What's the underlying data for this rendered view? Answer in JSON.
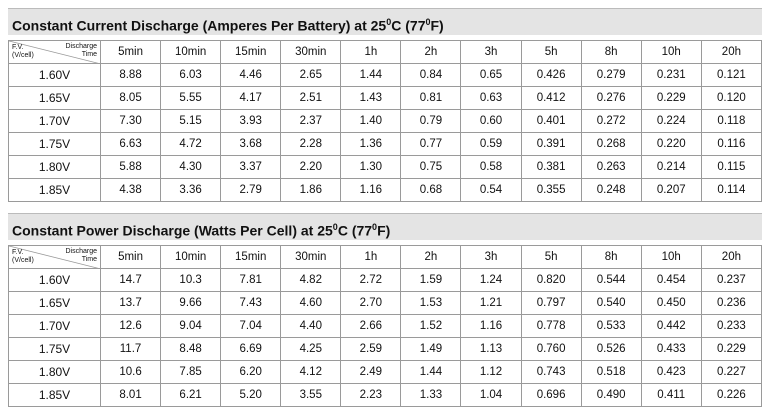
{
  "tables": [
    {
      "title_parts": [
        "Constant Current Discharge (Amperes Per Battery) at 25",
        "0",
        "C (77",
        "0",
        "F)"
      ],
      "corner": {
        "row_label": [
          "F.V.",
          "(V/cell)"
        ],
        "col_label": [
          "Discharge",
          "Time"
        ]
      },
      "columns": [
        "5min",
        "10min",
        "15min",
        "30min",
        "1h",
        "2h",
        "3h",
        "5h",
        "8h",
        "10h",
        "20h"
      ],
      "rows": [
        {
          "fv": "1.60V",
          "values": [
            "8.88",
            "6.03",
            "4.46",
            "2.65",
            "1.44",
            "0.84",
            "0.65",
            "0.426",
            "0.279",
            "0.231",
            "0.121"
          ]
        },
        {
          "fv": "1.65V",
          "values": [
            "8.05",
            "5.55",
            "4.17",
            "2.51",
            "1.43",
            "0.81",
            "0.63",
            "0.412",
            "0.276",
            "0.229",
            "0.120"
          ]
        },
        {
          "fv": "1.70V",
          "values": [
            "7.30",
            "5.15",
            "3.93",
            "2.37",
            "1.40",
            "0.79",
            "0.60",
            "0.401",
            "0.272",
            "0.224",
            "0.118"
          ]
        },
        {
          "fv": "1.75V",
          "values": [
            "6.63",
            "4.72",
            "3.68",
            "2.28",
            "1.36",
            "0.77",
            "0.59",
            "0.391",
            "0.268",
            "0.220",
            "0.116"
          ]
        },
        {
          "fv": "1.80V",
          "values": [
            "5.88",
            "4.30",
            "3.37",
            "2.20",
            "1.30",
            "0.75",
            "0.58",
            "0.381",
            "0.263",
            "0.214",
            "0.115"
          ]
        },
        {
          "fv": "1.85V",
          "values": [
            "4.38",
            "3.36",
            "2.79",
            "1.86",
            "1.16",
            "0.68",
            "0.54",
            "0.355",
            "0.248",
            "0.207",
            "0.114"
          ]
        }
      ]
    },
    {
      "title_parts": [
        "Constant Power Discharge (Watts Per Cell) at 25",
        "0",
        "C (77",
        "0",
        "F)"
      ],
      "corner": {
        "row_label": [
          "F.V.",
          "(V/cell)"
        ],
        "col_label": [
          "Discharge",
          "Time"
        ]
      },
      "columns": [
        "5min",
        "10min",
        "15min",
        "30min",
        "1h",
        "2h",
        "3h",
        "5h",
        "8h",
        "10h",
        "20h"
      ],
      "rows": [
        {
          "fv": "1.60V",
          "values": [
            "14.7",
            "10.3",
            "7.81",
            "4.82",
            "2.72",
            "1.59",
            "1.24",
            "0.820",
            "0.544",
            "0.454",
            "0.237"
          ]
        },
        {
          "fv": "1.65V",
          "values": [
            "13.7",
            "9.66",
            "7.43",
            "4.60",
            "2.70",
            "1.53",
            "1.21",
            "0.797",
            "0.540",
            "0.450",
            "0.236"
          ]
        },
        {
          "fv": "1.70V",
          "values": [
            "12.6",
            "9.04",
            "7.04",
            "4.40",
            "2.66",
            "1.52",
            "1.16",
            "0.778",
            "0.533",
            "0.442",
            "0.233"
          ]
        },
        {
          "fv": "1.75V",
          "values": [
            "11.7",
            "8.48",
            "6.69",
            "4.25",
            "2.59",
            "1.49",
            "1.13",
            "0.760",
            "0.526",
            "0.433",
            "0.229"
          ]
        },
        {
          "fv": "1.80V",
          "values": [
            "10.6",
            "7.85",
            "6.20",
            "4.12",
            "2.49",
            "1.44",
            "1.12",
            "0.743",
            "0.518",
            "0.423",
            "0.227"
          ]
        },
        {
          "fv": "1.85V",
          "values": [
            "8.01",
            "6.21",
            "5.20",
            "3.55",
            "2.23",
            "1.33",
            "1.04",
            "0.696",
            "0.490",
            "0.411",
            "0.226"
          ]
        }
      ]
    }
  ]
}
